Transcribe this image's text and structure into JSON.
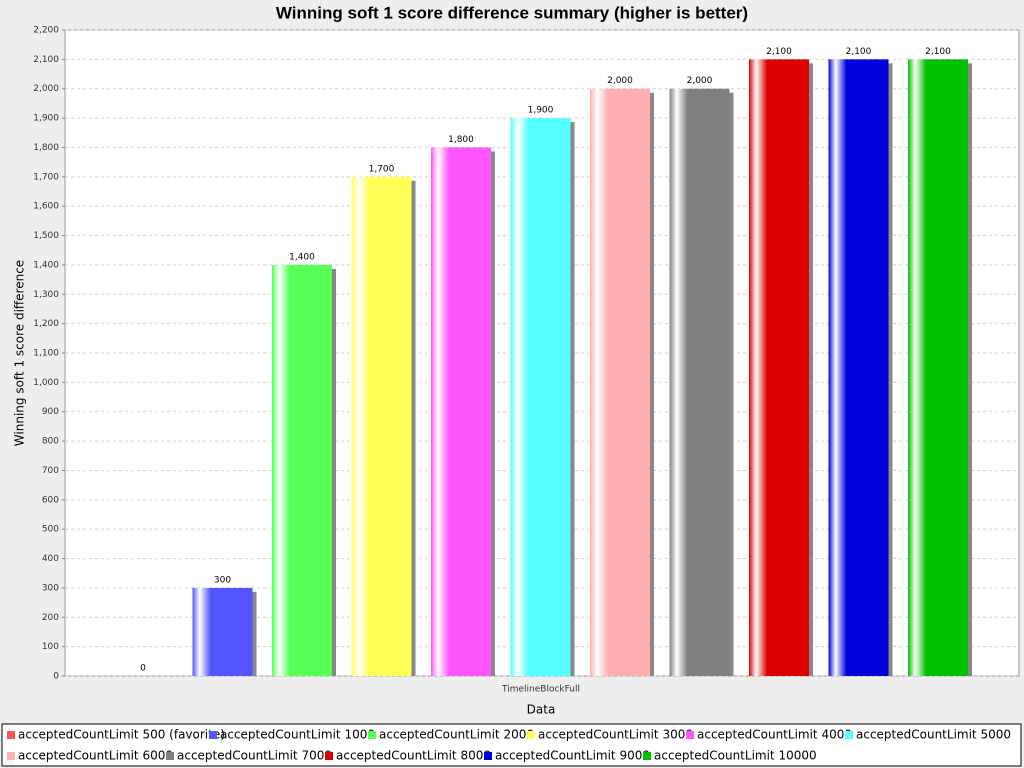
{
  "chart_data": {
    "type": "bar",
    "title": "Winning soft 1 score difference summary (higher is better)",
    "x_label": "Data",
    "y_label": "Winning soft 1 score difference",
    "categories": [
      "TimelineBlockFull"
    ],
    "series": [
      {
        "name": "acceptedCountLimit 500 (favorite)",
        "color": "#ff5555",
        "values": [
          0
        ]
      },
      {
        "name": "acceptedCountLimit 1000",
        "color": "#5555ff",
        "values": [
          300
        ]
      },
      {
        "name": "acceptedCountLimit 2000",
        "color": "#55ff55",
        "values": [
          1400
        ],
        "value_labels": [
          "1,400"
        ]
      },
      {
        "name": "acceptedCountLimit 3000",
        "color": "#ffff55",
        "values": [
          1700
        ],
        "value_labels": [
          "1,700"
        ]
      },
      {
        "name": "acceptedCountLimit 4000",
        "color": "#ff55ff",
        "values": [
          1800
        ],
        "value_labels": [
          "1,800"
        ]
      },
      {
        "name": "acceptedCountLimit 5000",
        "color": "#55ffff",
        "values": [
          1900
        ],
        "value_labels": [
          "1,900"
        ]
      },
      {
        "name": "acceptedCountLimit 6000",
        "color": "#ffafaf",
        "values": [
          2000
        ],
        "value_labels": [
          "2,000"
        ]
      },
      {
        "name": "acceptedCountLimit 7000",
        "color": "#808080",
        "values": [
          2000
        ],
        "value_labels": [
          "2,000"
        ]
      },
      {
        "name": "acceptedCountLimit 8000",
        "color": "#dd0000",
        "values": [
          2100
        ],
        "value_labels": [
          "2,100"
        ]
      },
      {
        "name": "acceptedCountLimit 9000",
        "color": "#0000dd",
        "values": [
          2100
        ],
        "value_labels": [
          "2,100"
        ]
      },
      {
        "name": "acceptedCountLimit 10000",
        "color": "#00c000",
        "values": [
          2100
        ],
        "value_labels": [
          "2,100"
        ]
      }
    ],
    "ylim": [
      0,
      2200
    ],
    "yticks": [
      0,
      100,
      200,
      300,
      400,
      500,
      600,
      700,
      800,
      900,
      {
        "value": 1000,
        "label": "1,000"
      },
      {
        "value": 1100,
        "label": "1,100"
      },
      {
        "value": 1200,
        "label": "1,200"
      },
      {
        "value": 1300,
        "label": "1,300"
      },
      {
        "value": 1400,
        "label": "1,400"
      },
      {
        "value": 1500,
        "label": "1,500"
      },
      {
        "value": 1600,
        "label": "1,600"
      },
      {
        "value": 1700,
        "label": "1,700"
      },
      {
        "value": 1800,
        "label": "1,800"
      },
      {
        "value": 1900,
        "label": "1,900"
      },
      {
        "value": 2000,
        "label": "2,000"
      },
      {
        "value": 2100,
        "label": "2,100"
      },
      {
        "value": 2200,
        "label": "2,200"
      }
    ],
    "grid": true
  }
}
